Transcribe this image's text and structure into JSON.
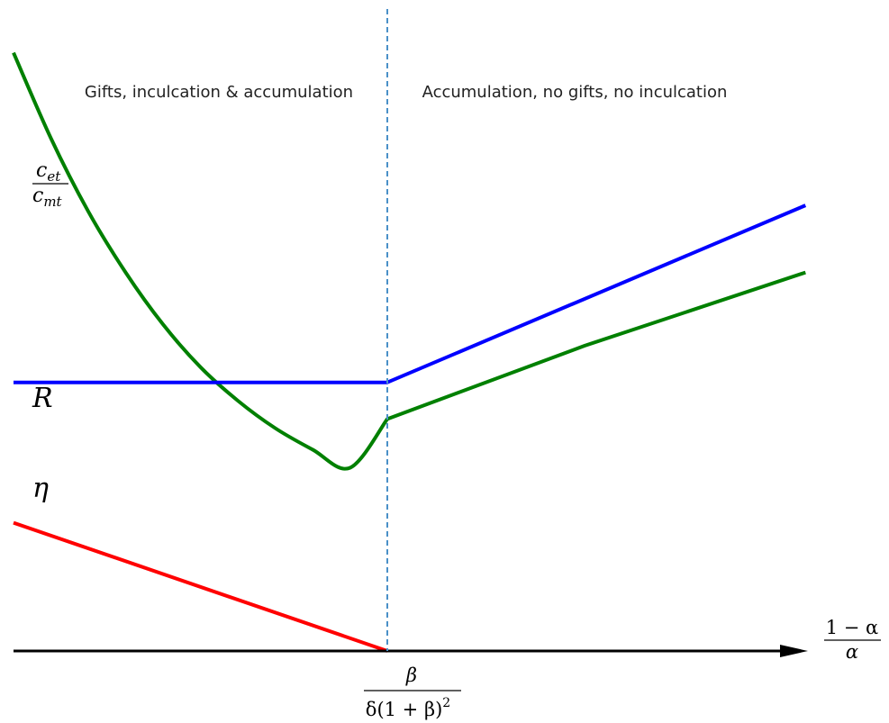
{
  "chart_data": {
    "type": "line",
    "title": "",
    "xlabel": {
      "numerator": "1 − α",
      "denominator": "α"
    },
    "ylabel": "",
    "xlim": [
      0,
      1.0
    ],
    "ylim": [
      0,
      1.0
    ],
    "grid": false,
    "legend": "none",
    "threshold": {
      "x": 0.5,
      "label": {
        "numerator": "β",
        "denominator_main": "δ(1 + β)",
        "denominator_power": "2"
      }
    },
    "regions": [
      {
        "name": "left",
        "label": "Gifts, inculcation & accumulation"
      },
      {
        "name": "right",
        "label": "Accumulation, no gifts, no inculcation"
      }
    ],
    "series": [
      {
        "key": "green",
        "label": {
          "numerator_base": "c",
          "numerator_sub": "et",
          "denominator_base": "c",
          "denominator_sub": "mt"
        },
        "color": "#008000",
        "x": [
          0.0,
          0.05,
          0.1,
          0.15,
          0.2,
          0.25,
          0.3,
          0.35,
          0.4,
          0.45,
          0.5,
          0.75,
          1.03
        ],
        "y": [
          0.98,
          0.84,
          0.72,
          0.62,
          0.535,
          0.465,
          0.41,
          0.365,
          0.33,
          0.3,
          0.38,
          0.5,
          0.62
        ]
      },
      {
        "key": "blue",
        "label": "R",
        "color": "#0000ff",
        "x": [
          0.0,
          0.5,
          1.03
        ],
        "y": [
          0.44,
          0.44,
          0.73
        ]
      },
      {
        "key": "red",
        "label": "η",
        "color": "#ff0000",
        "x": [
          0.0,
          0.5
        ],
        "y": [
          0.21,
          0.0
        ]
      }
    ],
    "x_axis_color": "#000000",
    "threshold_color": "#4a90c8"
  }
}
